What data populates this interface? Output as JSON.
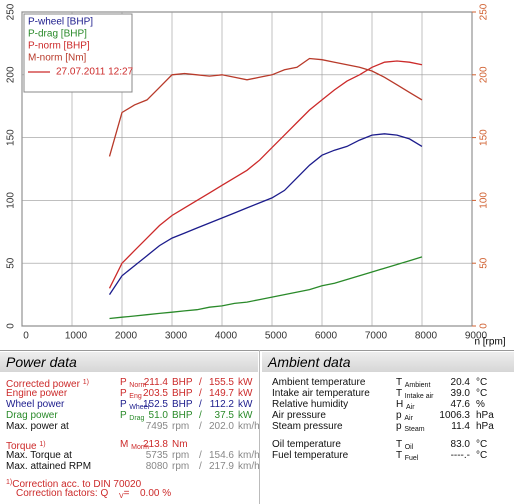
{
  "chart_data": {
    "type": "line",
    "x_label": "n [rpm]",
    "xlim": [
      0,
      9000
    ],
    "xticks": [
      0,
      1000,
      2000,
      3000,
      4000,
      5000,
      6000,
      7000,
      8000,
      9000
    ],
    "ylim": [
      0,
      250
    ],
    "yticks": [
      0,
      50,
      100,
      150,
      200,
      250
    ],
    "y2lim": [
      0,
      250
    ],
    "y2ticks": [
      0,
      50,
      100,
      150,
      200,
      250
    ],
    "y2_color": "#d06030",
    "grid": true,
    "legend_position": "top-left",
    "legend_note": "27.07.2011 12:27",
    "legend_note_color": "#cc2a2a",
    "x": [
      1750,
      2000,
      2250,
      2500,
      2750,
      3000,
      3250,
      3500,
      3750,
      4000,
      4250,
      4500,
      4750,
      5000,
      5250,
      5500,
      5750,
      6000,
      6250,
      6500,
      6750,
      7000,
      7250,
      7500,
      7750,
      8000
    ],
    "series": [
      {
        "name": "P-wheel [BHP]",
        "color": "#1c1c8c",
        "values": [
          25,
          40,
          48,
          56,
          64,
          70,
          74,
          78,
          82,
          86,
          90,
          94,
          98,
          102,
          108,
          118,
          128,
          136,
          140,
          143,
          148,
          152,
          153,
          152,
          149,
          143
        ]
      },
      {
        "name": "P-drag [BHP]",
        "color": "#2a8a2a",
        "values": [
          6,
          7,
          8,
          9,
          10,
          11,
          12,
          13,
          15,
          16,
          18,
          19,
          21,
          23,
          25,
          27,
          29,
          32,
          34,
          37,
          40,
          43,
          46,
          49,
          52,
          55
        ]
      },
      {
        "name": "P-norm [BHP]",
        "color": "#cc2a2a",
        "values": [
          30,
          50,
          60,
          70,
          80,
          88,
          94,
          100,
          106,
          112,
          118,
          124,
          132,
          142,
          152,
          162,
          172,
          180,
          188,
          195,
          200,
          206,
          210,
          211,
          210,
          208
        ]
      },
      {
        "name": "M-norm [Nm]",
        "color": "#b83a2a",
        "axis": "y2",
        "values": [
          135,
          170,
          176,
          180,
          190,
          200,
          201,
          200,
          199,
          200,
          198,
          196,
          198,
          200,
          204,
          206,
          213,
          212,
          210,
          208,
          206,
          203,
          198,
          192,
          186,
          180
        ]
      }
    ]
  },
  "power_data": {
    "title": "Power data",
    "groups": [
      [
        {
          "label": "Corrected power",
          "note": "1)",
          "sym": "P",
          "sub": "Norm",
          "v1": "211.4",
          "u1": "BHP",
          "sep": "/",
          "v2": "155.5",
          "u2": "kW",
          "color": "#cc2a2a",
          "value_color": "#cc2a2a"
        },
        {
          "label": "Engine power",
          "sym": "P",
          "sub": "Eng",
          "v1": "203.5",
          "u1": "BHP",
          "sep": "/",
          "v2": "149.7",
          "u2": "kW",
          "color": "#cc2a2a",
          "value_color": "#cc2a2a"
        },
        {
          "label": "Wheel power",
          "sym": "P",
          "sub": "Wheel",
          "v1": "152.5",
          "u1": "BHP",
          "sep": "/",
          "v2": "112.2",
          "u2": "kW",
          "color": "#1c1c8c",
          "value_color": "#1c1c8c"
        },
        {
          "label": "Drag power",
          "sym": "P",
          "sub": "Drag",
          "v1": "51.0",
          "u1": "BHP",
          "sep": "/",
          "v2": "37.5",
          "u2": "kW",
          "color": "#2a8a2a",
          "value_color": "#2a8a2a"
        },
        {
          "label": "Max. power at",
          "v1": "7495",
          "u1": "rpm",
          "sep": "/",
          "v2": "202.0",
          "u2": "km/h",
          "color": "#111111",
          "value_color": "#888888"
        }
      ],
      [
        {
          "label": "Torque",
          "note": "1)",
          "sym": "M",
          "sub": "Morm",
          "v1": "213.8",
          "u1": "Nm",
          "color": "#cc2a2a",
          "value_color": "#cc2a2a"
        },
        {
          "label": "Max. Torque at",
          "v1": "5735",
          "u1": "rpm",
          "sep": "/",
          "v2": "154.6",
          "u2": "km/h",
          "color": "#111111",
          "value_color": "#888888"
        },
        {
          "label": "Max. attained RPM",
          "v1": "8080",
          "u1": "rpm",
          "sep": "/",
          "v2": "217.9",
          "u2": "km/h",
          "color": "#111111",
          "value_color": "#888888"
        }
      ]
    ],
    "footnote": {
      "note": "1)",
      "text": "Correction acc. to DIN 70020"
    },
    "correction": {
      "label": "Correction factors:",
      "sym": "Q",
      "sub": "V",
      "eq": "=",
      "value": "0.00",
      "unit": "%"
    },
    "footnote_color": "#cc2a2a"
  },
  "ambient_data": {
    "title": "Ambient data",
    "groups": [
      [
        {
          "label": "Ambient temperature",
          "sym": "T",
          "sub": "Ambient",
          "value": "20.4",
          "unit": "°C"
        },
        {
          "label": "Intake air temperature",
          "sym": "T",
          "sub": "Intake air",
          "value": "39.0",
          "unit": "°C"
        },
        {
          "label": "Relative humidity",
          "sym": "H",
          "sub": "Air",
          "value": "47.6",
          "unit": "%"
        },
        {
          "label": "Air pressure",
          "sym": "p",
          "sub": "Air",
          "value": "1006.3",
          "unit": "hPa"
        },
        {
          "label": "Steam pressure",
          "sym": "p",
          "sub": "Steam",
          "value": "11.4",
          "unit": "hPa"
        }
      ],
      [
        {
          "label": "Oil temperature",
          "sym": "T",
          "sub": "Oil",
          "value": "83.0",
          "unit": "°C"
        },
        {
          "label": "Fuel temperature",
          "sym": "T",
          "sub": "Fuel",
          "value": "----.-",
          "unit": "°C"
        }
      ]
    ]
  }
}
